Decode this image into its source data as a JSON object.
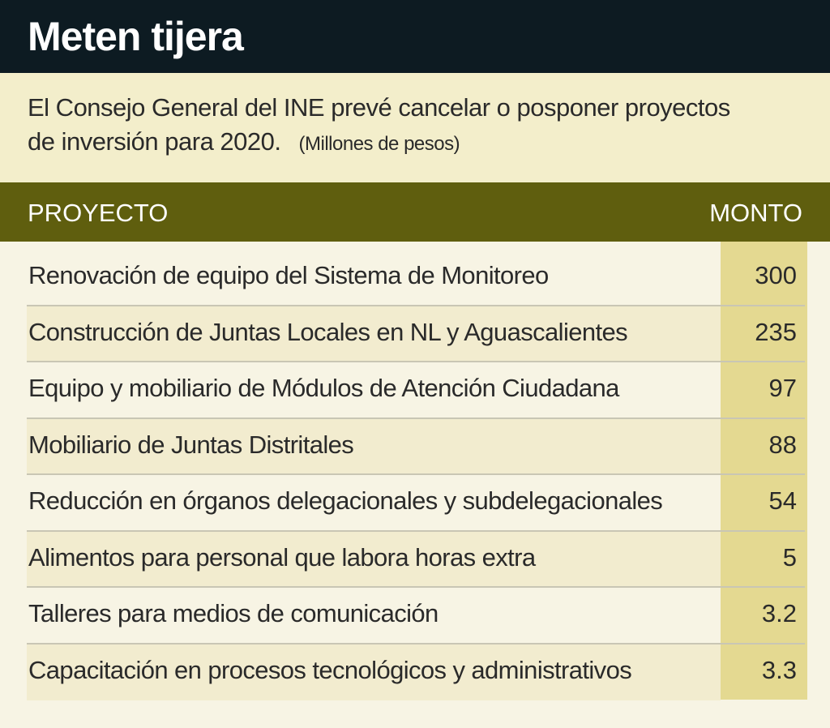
{
  "title": "Meten tijera",
  "subtitle": "El Consejo General del INE prevé cancelar o posponer proyectos de inversión para 2020.",
  "unit": "(Millones de pesos)",
  "colors": {
    "title_bg": "#0d1b22",
    "subtitle_bg": "#f3eecb",
    "header_bg": "#5f5e0e",
    "monto_col": "#e4d991",
    "body_bg": "#f7f4e4"
  },
  "chart_data": {
    "type": "table",
    "title": "Meten tijera",
    "columns": [
      "PROYECTO",
      "MONTO"
    ],
    "rows": [
      {
        "proyecto": "Renovación de equipo del Sistema de Monitoreo",
        "monto": "300"
      },
      {
        "proyecto": "Construcción de Juntas Locales en NL y Aguascalientes",
        "monto": "235"
      },
      {
        "proyecto": "Equipo y mobiliario de Módulos de Atención Ciudadana",
        "monto": "97"
      },
      {
        "proyecto": "Mobiliario de Juntas Distritales",
        "monto": "88"
      },
      {
        "proyecto": "Reducción en órganos delegacionales y subdelegacionales",
        "monto": "54"
      },
      {
        "proyecto": "Alimentos para personal que labora horas extra",
        "monto": "5"
      },
      {
        "proyecto": "Talleres para medios de comunicación",
        "monto": "3.2"
      },
      {
        "proyecto": "Capacitación en procesos tecnológicos y administrativos",
        "monto": "3.3"
      }
    ]
  }
}
